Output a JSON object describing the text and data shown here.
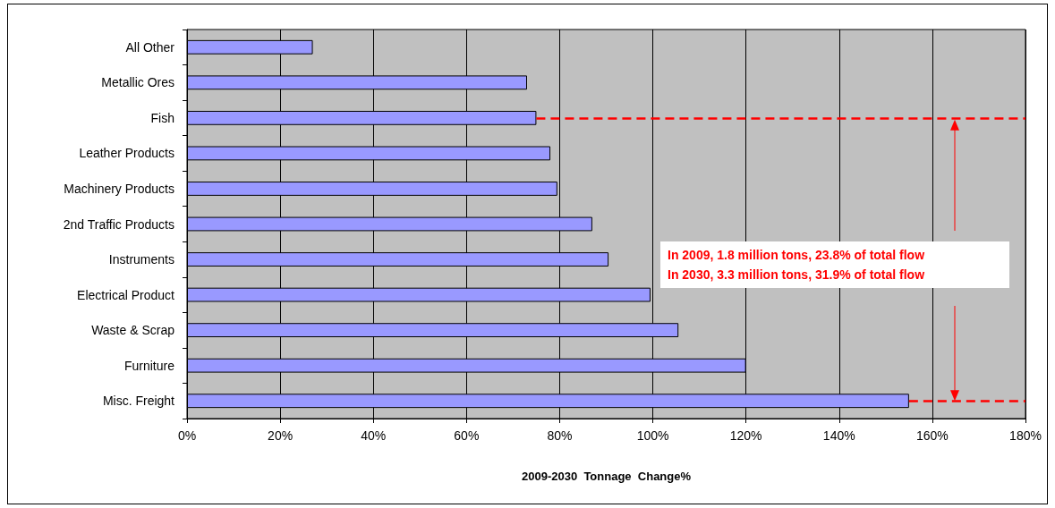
{
  "chart_data": {
    "type": "bar",
    "orientation": "horizontal",
    "categories": [
      "All Other",
      "Metallic Ores",
      "Fish",
      "Leather Products",
      "Machinery Products",
      "2nd Traffic Products",
      "Instruments",
      "Electrical Product",
      "Waste & Scrap",
      "Furniture",
      "Misc. Freight"
    ],
    "values": [
      27,
      73,
      75,
      78,
      79.5,
      87,
      90.5,
      99.5,
      105.5,
      120,
      155
    ],
    "color": "#9999ff",
    "xlabel": "2009-2030  Tonnage  Change%",
    "xlim": [
      0,
      180
    ],
    "xticks": [
      {
        "value": 0,
        "label": "0%"
      },
      {
        "value": 20,
        "label": "20%"
      },
      {
        "value": 40,
        "label": "40%"
      },
      {
        "value": 60,
        "label": "60%"
      },
      {
        "value": 80,
        "label": "80%"
      },
      {
        "value": 100,
        "label": "100%"
      },
      {
        "value": 120,
        "label": "120%"
      },
      {
        "value": 140,
        "label": "140%"
      },
      {
        "value": 160,
        "label": "160%"
      },
      {
        "value": 180,
        "label": "180%"
      }
    ],
    "grid": "x",
    "ref_lines": [
      {
        "axis": "y",
        "value": "Fish",
        "color": "#ff0000",
        "line_style": "dashed"
      },
      {
        "axis": "y",
        "value": "Misc. Freight",
        "color": "#ff0000",
        "line_style": "dashed"
      }
    ],
    "annotations": [
      "In 2009,  1.8 million tons, 23.8% of total flow",
      "In 2030,  3.3 million tons, 31.9% of total flow"
    ]
  }
}
